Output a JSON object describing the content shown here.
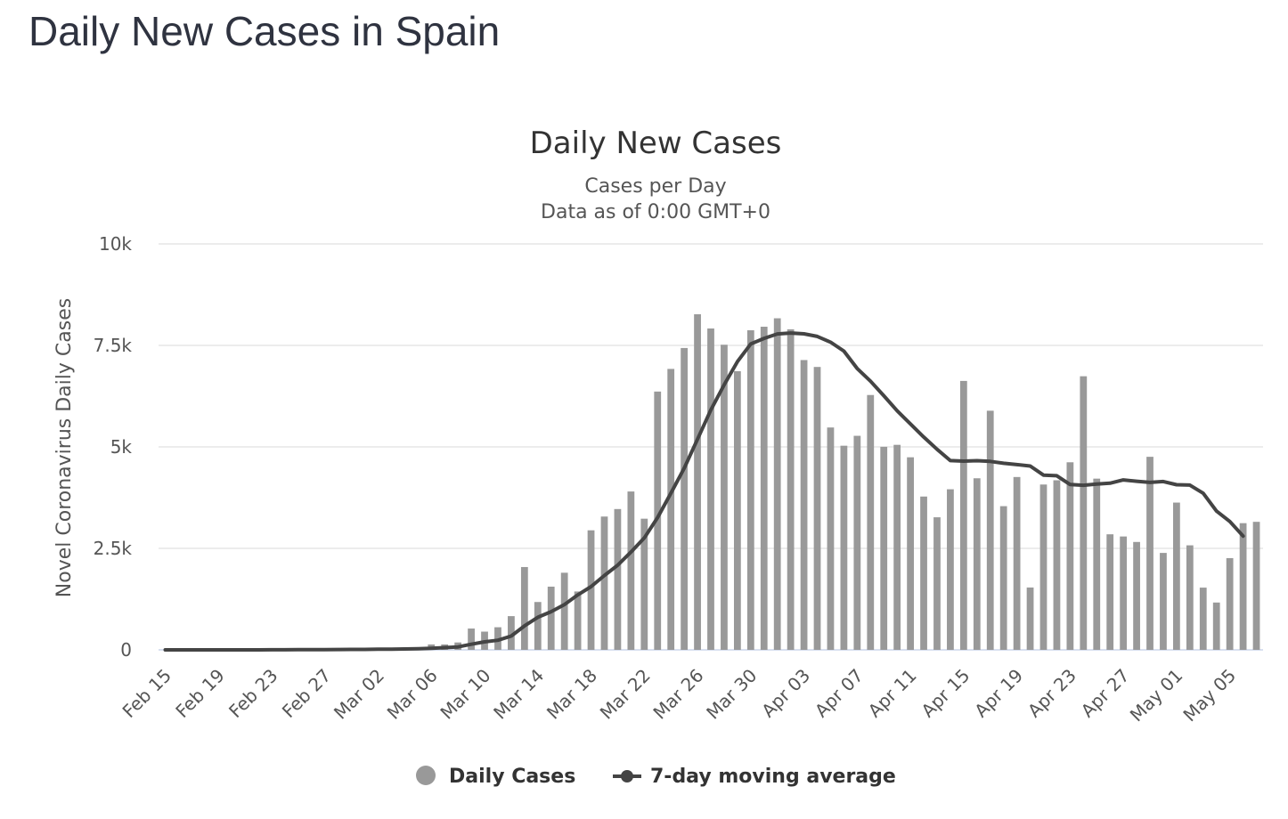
{
  "page": {
    "title": "Daily New Cases in Spain"
  },
  "chart_data": {
    "type": "bar",
    "title": "Daily New Cases",
    "subtitle": "Cases per Day",
    "subtitle2": "Data as of 0:00 GMT+0",
    "ylabel": "Novel Coronavirus Daily Cases",
    "xlabel": "",
    "ylim": [
      0,
      10000
    ],
    "yticks": [
      {
        "value": 0,
        "label": "0"
      },
      {
        "value": 2500,
        "label": "2.5k"
      },
      {
        "value": 5000,
        "label": "5k"
      },
      {
        "value": 7500,
        "label": "7.5k"
      },
      {
        "value": 10000,
        "label": "10k"
      }
    ],
    "xticks": [
      "Feb 15",
      "Feb 19",
      "Feb 23",
      "Feb 27",
      "Mar 02",
      "Mar 06",
      "Mar 10",
      "Mar 14",
      "Mar 18",
      "Mar 22",
      "Mar 26",
      "Mar 30",
      "Apr 03",
      "Apr 07",
      "Apr 11",
      "Apr 15",
      "Apr 19",
      "Apr 23",
      "Apr 27",
      "May 01",
      "May 05"
    ],
    "grid": true,
    "legend_position": "bottom-center",
    "colors": {
      "bars": "#999999",
      "line": "#444444",
      "grid": "#e6e6e6",
      "axis": "#ccd6eb"
    },
    "categories": [
      "Feb 15",
      "Feb 16",
      "Feb 17",
      "Feb 18",
      "Feb 19",
      "Feb 20",
      "Feb 21",
      "Feb 22",
      "Feb 23",
      "Feb 24",
      "Feb 25",
      "Feb 26",
      "Feb 27",
      "Feb 28",
      "Feb 29",
      "Mar 01",
      "Mar 02",
      "Mar 03",
      "Mar 04",
      "Mar 05",
      "Mar 06",
      "Mar 07",
      "Mar 08",
      "Mar 09",
      "Mar 10",
      "Mar 11",
      "Mar 12",
      "Mar 13",
      "Mar 14",
      "Mar 15",
      "Mar 16",
      "Mar 17",
      "Mar 18",
      "Mar 19",
      "Mar 20",
      "Mar 21",
      "Mar 22",
      "Mar 23",
      "Mar 24",
      "Mar 25",
      "Mar 26",
      "Mar 27",
      "Mar 28",
      "Mar 29",
      "Mar 30",
      "Mar 31",
      "Apr 01",
      "Apr 02",
      "Apr 03",
      "Apr 04",
      "Apr 05",
      "Apr 06",
      "Apr 07",
      "Apr 08",
      "Apr 09",
      "Apr 10",
      "Apr 11",
      "Apr 12",
      "Apr 13",
      "Apr 14",
      "Apr 15",
      "Apr 16",
      "Apr 17",
      "Apr 18",
      "Apr 19",
      "Apr 20",
      "Apr 21",
      "Apr 22",
      "Apr 23",
      "Apr 24",
      "Apr 25",
      "Apr 26",
      "Apr 27",
      "Apr 28",
      "Apr 29",
      "Apr 30",
      "May 01",
      "May 02",
      "May 03",
      "May 04",
      "May 05",
      "May 06",
      "May 07"
    ],
    "series": [
      {
        "name": "Daily Cases",
        "values": [
          0,
          0,
          0,
          0,
          0,
          0,
          0,
          0,
          0,
          0,
          2,
          3,
          7,
          9,
          13,
          10,
          44,
          47,
          59,
          55,
          134,
          134,
          182,
          525,
          449,
          557,
          831,
          2040,
          1179,
          1557,
          1900,
          1438,
          2945,
          3284,
          3469,
          3901,
          3231,
          6363,
          6921,
          7436,
          8267,
          7917,
          7516,
          6864,
          7873,
          7960,
          8168,
          7896,
          7139,
          6969,
          5478,
          5029,
          5273,
          6278,
          5002,
          5051,
          4744,
          3777,
          3266,
          3956,
          6625,
          4227,
          5891,
          3540,
          4258,
          1536,
          4073,
          4178,
          4621,
          6740,
          4218,
          2847,
          2793,
          2658,
          4756,
          2388,
          3628,
          2575,
          1533,
          1166,
          2260,
          3121,
          3154
        ]
      },
      {
        "name": "7-day moving average",
        "values": [
          0,
          0,
          0,
          0,
          0,
          0,
          0,
          1,
          2,
          3,
          4,
          5,
          6,
          8,
          10,
          12,
          15,
          18,
          22,
          26,
          37,
          55,
          72,
          138,
          198,
          236,
          339,
          590,
          802,
          940,
          1117,
          1352,
          1557,
          1832,
          2086,
          2410,
          2756,
          3256,
          3859,
          4474,
          5190,
          5908,
          6527,
          7100,
          7536,
          7673,
          7782,
          7805,
          7784,
          7721,
          7579,
          7359,
          6933,
          6618,
          6262,
          5890,
          5566,
          5244,
          4941,
          4663,
          4650,
          4659,
          4642,
          4596,
          4564,
          4528,
          4304,
          4290,
          4073,
          4055,
          4083,
          4105,
          4186,
          4154,
          4125,
          4148,
          4067,
          4060,
          3858,
          3418,
          3162,
          2803,
          2563
        ]
      }
    ]
  },
  "legend": [
    {
      "label": "Daily Cases"
    },
    {
      "label": "7-day moving average"
    }
  ]
}
